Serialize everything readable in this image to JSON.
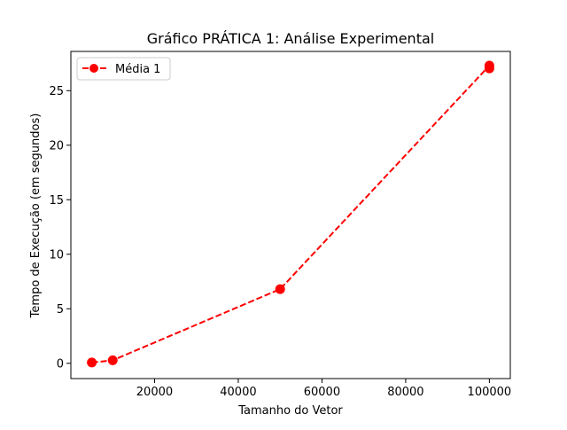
{
  "chart_data": {
    "type": "line",
    "title": "Gráfico PRÁTICA 1: Análise Experimental",
    "xlabel": "Tamanho do Vetor",
    "ylabel": "Tempo de Execução (em segundos)",
    "xlim": [
      0,
      105000
    ],
    "ylim": [
      -1.4,
      28.6
    ],
    "xticks": [
      20000,
      40000,
      60000,
      80000,
      100000
    ],
    "xtick_labels": [
      "20000",
      "40000",
      "60000",
      "80000",
      "100000"
    ],
    "yticks": [
      0,
      5,
      10,
      15,
      20,
      25
    ],
    "ytick_labels": [
      "0",
      "5",
      "10",
      "15",
      "20",
      "25"
    ],
    "grid": false,
    "legend_position": "top-left",
    "series": [
      {
        "name": "Média 1",
        "color": "#ff0000",
        "line_style": "dashed",
        "marker": "circle",
        "x": [
          5000,
          10000,
          50000,
          100000,
          100000
        ],
        "y": [
          0.07,
          0.28,
          6.8,
          27.3,
          27.05
        ]
      }
    ]
  }
}
